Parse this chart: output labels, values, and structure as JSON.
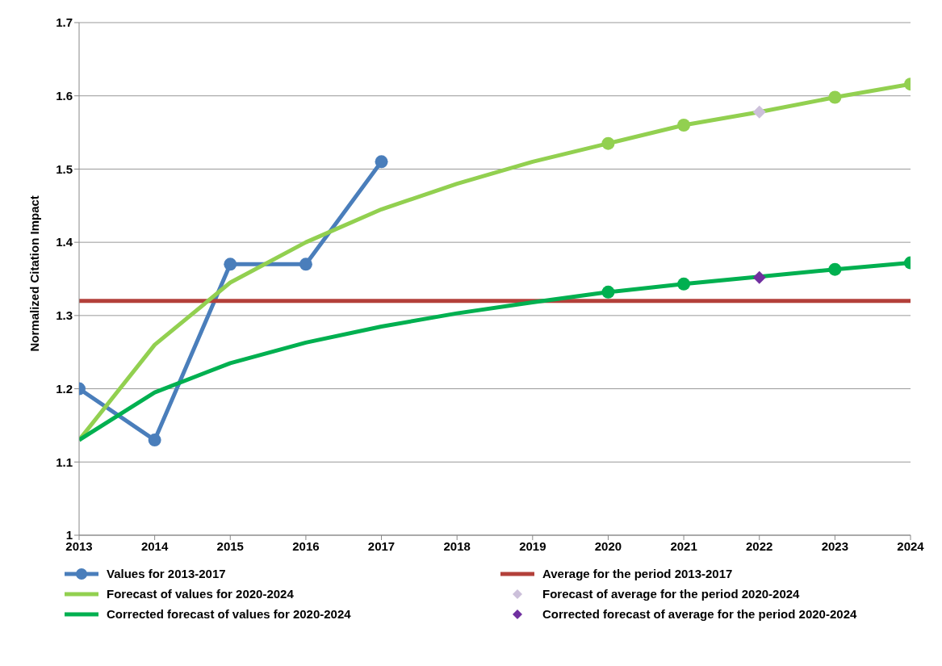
{
  "chart_data": {
    "type": "line",
    "ylabel": "Normalized Citation Impact",
    "categories": [
      "2013",
      "2014",
      "2015",
      "2016",
      "2017",
      "2018",
      "2019",
      "2020",
      "2021",
      "2022",
      "2023",
      "2024"
    ],
    "ylim": [
      1,
      1.7
    ],
    "yticks": [
      1,
      1.1,
      1.2,
      1.3,
      1.4,
      1.5,
      1.6,
      1.7
    ],
    "grid": "y",
    "legend": "bottom",
    "series": [
      {
        "name": "Values for 2013-2017",
        "color": "#4a7ebb",
        "marker": "circle",
        "values": [
          1.2,
          1.13,
          1.37,
          1.37,
          1.51,
          null,
          null,
          null,
          null,
          null,
          null,
          null
        ]
      },
      {
        "name": "Average for the period 2013-2017",
        "color": "#b3403a",
        "marker": "none",
        "values": [
          1.32,
          1.32,
          1.32,
          1.32,
          1.32,
          1.32,
          1.32,
          1.32,
          1.32,
          1.32,
          1.32,
          1.32
        ]
      },
      {
        "name": "Forecast of values for 2020-2024",
        "color": "#92d050",
        "marker": "none",
        "values": [
          1.13,
          1.26,
          1.345,
          1.4,
          1.445,
          1.48,
          1.51,
          1.535,
          1.56,
          1.578,
          1.598,
          1.616
        ]
      },
      {
        "name": "Forecast of average for the period 2020-2024",
        "type": "scatter",
        "color": "#ccc0da",
        "marker": "diamond",
        "values": [
          null,
          null,
          null,
          null,
          null,
          null,
          null,
          null,
          null,
          1.578,
          null,
          null
        ]
      },
      {
        "name": "Corrected forecast of values for 2020-2024",
        "color": "#00b050",
        "marker": "none",
        "values": [
          1.13,
          1.195,
          1.235,
          1.263,
          1.285,
          1.303,
          1.318,
          1.332,
          1.343,
          1.353,
          1.363,
          1.372
        ]
      },
      {
        "name": "Corrected forecast of average for the period 2020-2024",
        "type": "scatter",
        "color": "#7030a0",
        "marker": "diamond",
        "values": [
          null,
          null,
          null,
          null,
          null,
          null,
          null,
          null,
          null,
          1.352,
          null,
          null
        ]
      },
      {
        "type": "scatter",
        "color": "#92d050",
        "marker": "circle",
        "values": [
          null,
          null,
          null,
          null,
          null,
          null,
          null,
          1.535,
          1.56,
          null,
          1.598,
          1.616
        ]
      },
      {
        "type": "scatter",
        "color": "#00b050",
        "marker": "circle",
        "values": [
          null,
          null,
          null,
          null,
          null,
          null,
          null,
          1.332,
          1.343,
          null,
          1.363,
          1.372
        ]
      }
    ]
  }
}
